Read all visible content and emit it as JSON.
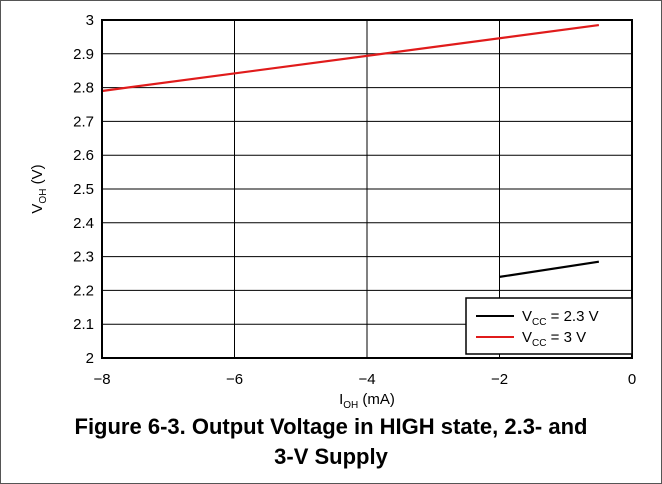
{
  "chart_data": {
    "type": "line",
    "xlabel_main": "I",
    "xlabel_sub": "OH",
    "xlabel_unit": " (mA)",
    "ylabel_main": "V",
    "ylabel_sub": "OH",
    "ylabel_unit": " (V)",
    "xlim": [
      -8,
      0
    ],
    "ylim": [
      2,
      3
    ],
    "x_ticks": [
      -8,
      -6,
      -4,
      -2,
      0
    ],
    "y_ticks": [
      2,
      2.1,
      2.2,
      2.3,
      2.4,
      2.5,
      2.6,
      2.7,
      2.8,
      2.9,
      3
    ],
    "grid": true,
    "legend_position": "bottom-right",
    "series": [
      {
        "legend_main": "V",
        "legend_sub": "CC",
        "legend_value": " = 2.3 V",
        "color": "#000000",
        "x": [
          -2.0,
          -0.5
        ],
        "y": [
          2.24,
          2.285
        ]
      },
      {
        "legend_main": "V",
        "legend_sub": "CC",
        "legend_value": " = 3 V",
        "color": "#e01b1b",
        "x": [
          -8.0,
          -0.5
        ],
        "y": [
          2.79,
          2.985
        ]
      }
    ]
  },
  "caption": {
    "line1": "Figure 6-3. Output Voltage in HIGH state, 2.3- and",
    "line2": "3-V Supply"
  }
}
